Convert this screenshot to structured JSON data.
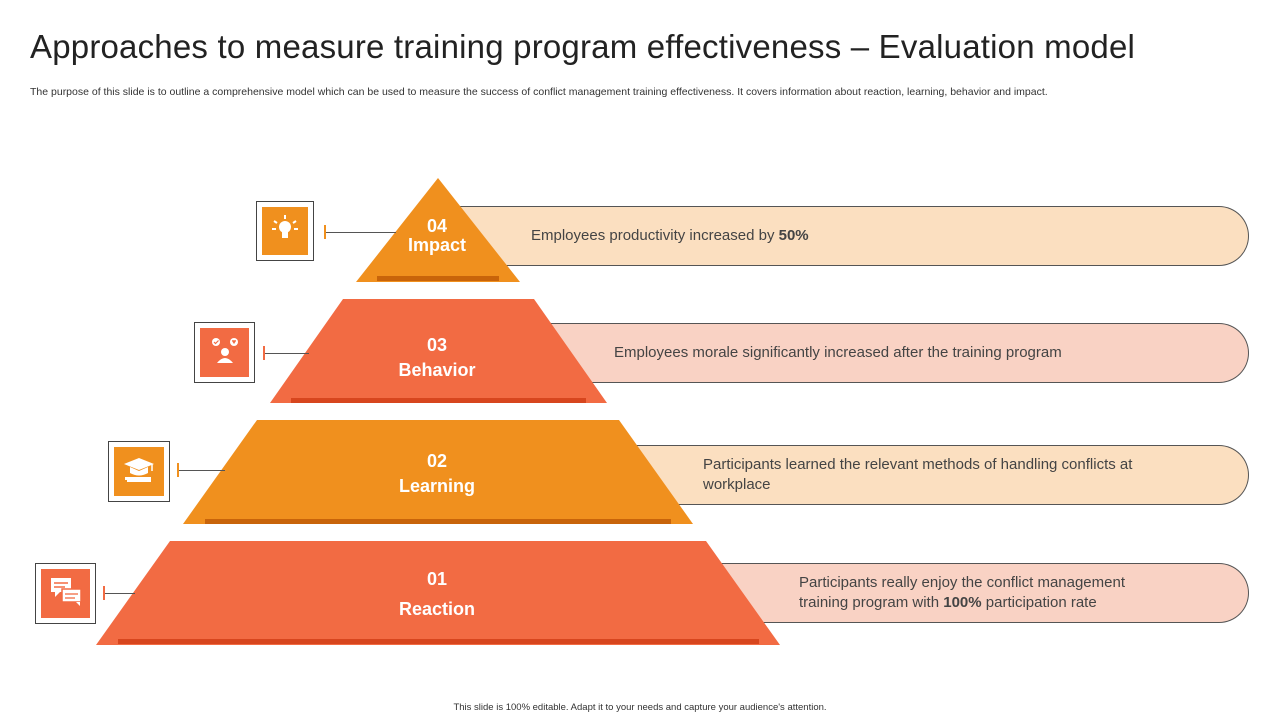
{
  "title": "Approaches to measure training program effectiveness – Evaluation model",
  "subtitle": "The purpose of this slide is to outline a comprehensive model which can be used to measure the success of conflict management training effectiveness. It covers information about reaction, learning, behavior and impact.",
  "footer": "This slide is 100% editable.  Adapt it to your needs and capture your audience's attention.",
  "colors": {
    "orange": "#F0901E",
    "coral": "#F26B43",
    "orange_dark": "#C8640A",
    "coral_dark": "#D7461E",
    "pill_orange": "#FBDFC0",
    "pill_coral": "#F9D2C4"
  },
  "levels": [
    {
      "number": "04",
      "name": "Impact",
      "icon": "lightbulb-icon",
      "text_before": "Employees productivity increased by ",
      "text_bold": "50%",
      "text_after": ""
    },
    {
      "number": "03",
      "name": "Behavior",
      "icon": "happy-person-icon",
      "text_before": "Employees morale significantly increased after the training program",
      "text_bold": "",
      "text_after": ""
    },
    {
      "number": "02",
      "name": "Learning",
      "icon": "graduation-cap-icon",
      "text_before": "Participants learned the relevant methods of handling conflicts at workplace",
      "text_bold": "",
      "text_after": ""
    },
    {
      "number": "01",
      "name": "Reaction",
      "icon": "chat-bubbles-icon",
      "text_before": "Participants really enjoy the conflict management training program with ",
      "text_bold": "100%",
      "text_after": " participation rate"
    }
  ]
}
